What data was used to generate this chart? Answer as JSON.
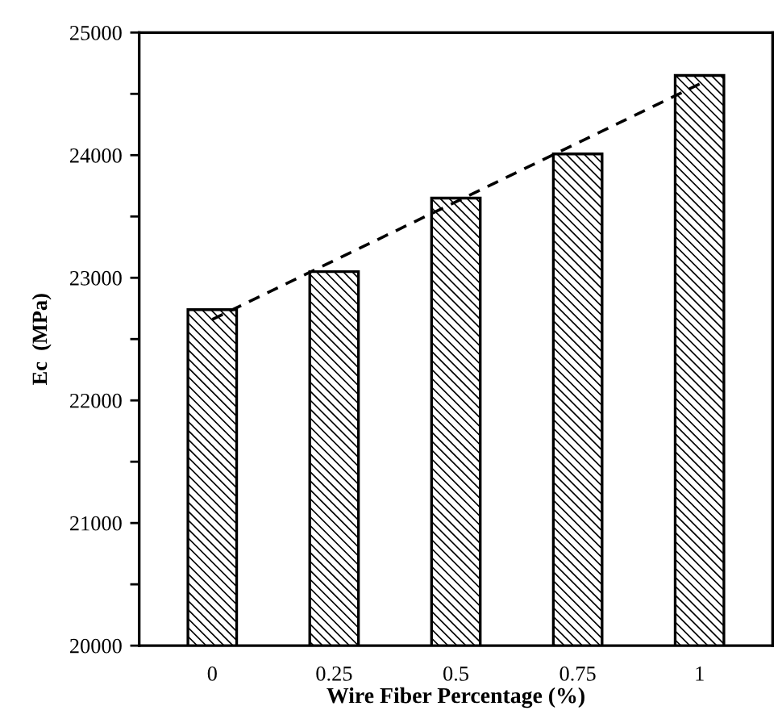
{
  "chart_data": {
    "type": "bar",
    "xlabel": "Wire Fiber Percentage (%)",
    "ylabel": "Ec  (MPa)",
    "categories": [
      "0",
      "0.25",
      "0.5",
      "0.75",
      "1"
    ],
    "series": [
      {
        "color": "#000000",
        "values": [
          22740,
          23050,
          23650,
          24010,
          24650
        ]
      },
      {
        "type": "line",
        "color": "#000000",
        "line_style": "dashed",
        "values": [
          22660,
          23140,
          23620,
          24100,
          24580
        ]
      }
    ],
    "ylim": [
      20000,
      25000
    ],
    "yticks": [
      20000,
      {
        "value": 20500,
        "label": null
      },
      21000,
      {
        "value": 21500,
        "label": null
      },
      22000,
      {
        "value": 22500,
        "label": null
      },
      23000,
      {
        "value": 23500,
        "label": null
      },
      24000,
      {
        "value": 24500,
        "label": null
      },
      25000
    ],
    "grid": false,
    "legend": false
  }
}
